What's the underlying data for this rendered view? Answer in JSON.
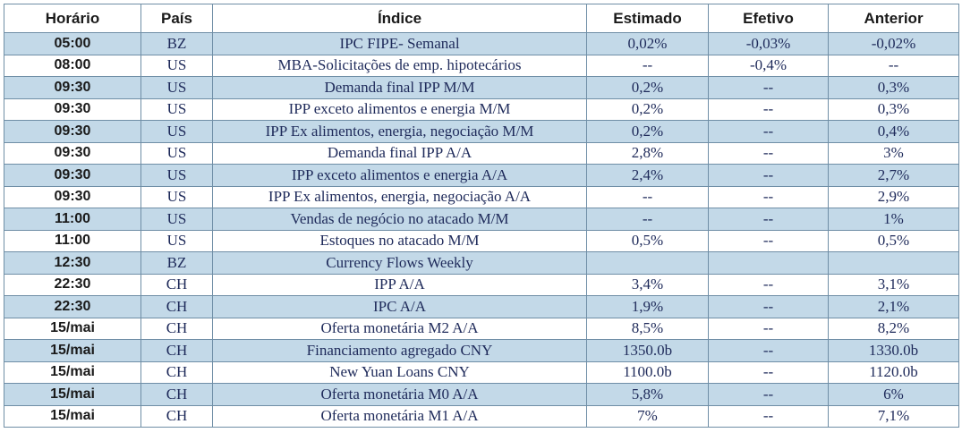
{
  "headers": [
    "Horário",
    "País",
    "Índice",
    "Estimado",
    "Efetivo",
    "Anterior"
  ],
  "rows": [
    {
      "time": "05:00",
      "country": "BZ",
      "index": "IPC FIPE- Semanal",
      "estimated": "0,02%",
      "actual": "-0,03%",
      "previous": "-0,02%"
    },
    {
      "time": "08:00",
      "country": "US",
      "index": "MBA-Solicitações de emp. hipotecários",
      "estimated": "--",
      "actual": "-0,4%",
      "previous": "--"
    },
    {
      "time": "09:30",
      "country": "US",
      "index": "Demanda final IPP M/M",
      "estimated": "0,2%",
      "actual": "--",
      "previous": "0,3%"
    },
    {
      "time": "09:30",
      "country": "US",
      "index": "IPP exceto alimentos e energia M/M",
      "estimated": "0,2%",
      "actual": "--",
      "previous": "0,3%"
    },
    {
      "time": "09:30",
      "country": "US",
      "index": "IPP Ex alimentos, energia, negociação M/M",
      "estimated": "0,2%",
      "actual": "--",
      "previous": "0,4%"
    },
    {
      "time": "09:30",
      "country": "US",
      "index": "Demanda final IPP A/A",
      "estimated": "2,8%",
      "actual": "--",
      "previous": "3%"
    },
    {
      "time": "09:30",
      "country": "US",
      "index": "IPP exceto alimentos e energia A/A",
      "estimated": "2,4%",
      "actual": "--",
      "previous": "2,7%"
    },
    {
      "time": "09:30",
      "country": "US",
      "index": "IPP Ex alimentos, energia, negociação A/A",
      "estimated": "--",
      "actual": "--",
      "previous": "2,9%"
    },
    {
      "time": "11:00",
      "country": "US",
      "index": "Vendas de negócio no atacado M/M",
      "estimated": "--",
      "actual": "--",
      "previous": "1%"
    },
    {
      "time": "11:00",
      "country": "US",
      "index": "Estoques no atacado M/M",
      "estimated": "0,5%",
      "actual": "--",
      "previous": "0,5%"
    },
    {
      "time": "12:30",
      "country": "BZ",
      "index": "Currency Flows Weekly",
      "estimated": "",
      "actual": "",
      "previous": ""
    },
    {
      "time": "22:30",
      "country": "CH",
      "index": "IPP A/A",
      "estimated": "3,4%",
      "actual": "--",
      "previous": "3,1%"
    },
    {
      "time": "22:30",
      "country": "CH",
      "index": "IPC A/A",
      "estimated": "1,9%",
      "actual": "--",
      "previous": "2,1%"
    },
    {
      "time": "15/mai",
      "country": "CH",
      "index": "Oferta monetária M2 A/A",
      "estimated": "8,5%",
      "actual": "--",
      "previous": "8,2%"
    },
    {
      "time": "15/mai",
      "country": "CH",
      "index": "Financiamento agregado CNY",
      "estimated": "1350.0b",
      "actual": "--",
      "previous": "1330.0b"
    },
    {
      "time": "15/mai",
      "country": "CH",
      "index": "New Yuan Loans CNY",
      "estimated": "1100.0b",
      "actual": "--",
      "previous": "1120.0b"
    },
    {
      "time": "15/mai",
      "country": "CH",
      "index": "Oferta monetária M0 A/A",
      "estimated": "5,8%",
      "actual": "--",
      "previous": "6%"
    },
    {
      "time": "15/mai",
      "country": "CH",
      "index": "Oferta monetária M1 A/A",
      "estimated": "7%",
      "actual": "--",
      "previous": "7,1%"
    }
  ],
  "colors": {
    "shaded_row": "#c3d9e8",
    "border": "#6f8ea6",
    "value_text": "#1e2a5a"
  }
}
